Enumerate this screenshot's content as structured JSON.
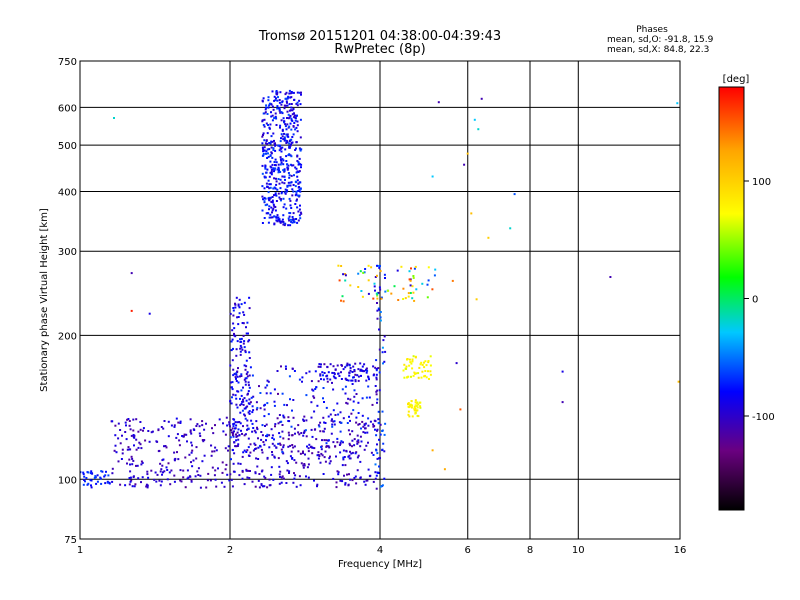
{
  "chart_data": {
    "type": "scatter",
    "title": "Tromsø 20151201 04:38:00-04:39:43",
    "subtitle": "RwPretec (8p)",
    "xlabel": "Frequency [MHz]",
    "ylabel": "Stationary phase Virtual Height [km]",
    "xscale": "log",
    "yscale": "log",
    "xlim": [
      1,
      16
    ],
    "ylim": [
      75,
      750
    ],
    "grid": true,
    "x_ticks": [
      1,
      2,
      4,
      6,
      8,
      10,
      16
    ],
    "y_ticks": [
      75,
      100,
      200,
      300,
      400,
      500,
      600,
      750
    ],
    "stats": {
      "heading": "Phases",
      "line_o": "mean, sd,O: -91.8, 15.9",
      "line_x": "mean, sd,X:  84.8, 22.3"
    },
    "colorbar": {
      "label": "[deg]",
      "range": [
        -180,
        180
      ],
      "ticks": [
        100,
        0,
        -100
      ],
      "colors": [
        "#000000",
        "#6a0080",
        "#0000ff",
        "#00ffff",
        "#00ff00",
        "#ffff00",
        "#ffa500",
        "#ff0000"
      ]
    },
    "clusters": [
      {
        "name": "F-layer echoes",
        "x": [
          2.32,
          2.78
        ],
        "y": [
          340,
          650
        ],
        "phase": [
          -105,
          -60
        ],
        "count": 520
      },
      {
        "name": "low-band trace",
        "x": [
          1.0,
          1.15
        ],
        "y": [
          96,
          104
        ],
        "phase": [
          -90,
          -60
        ],
        "count": 40
      },
      {
        "name": "main trace",
        "x": [
          1.15,
          3.9
        ],
        "y": [
          96,
          135
        ],
        "phase": [
          -120,
          -85
        ],
        "count": 520
      },
      {
        "name": "rising trace",
        "x": [
          2.0,
          2.2
        ],
        "y": [
          110,
          240
        ],
        "phase": [
          -110,
          -70
        ],
        "count": 160
      },
      {
        "name": "mid scatter",
        "x": [
          2.0,
          4.0
        ],
        "y": [
          110,
          175
        ],
        "phase": [
          -120,
          -60
        ],
        "count": 280
      },
      {
        "name": "upper band",
        "x": [
          3.0,
          3.95
        ],
        "y": [
          160,
          175
        ],
        "phase": [
          -110,
          -80
        ],
        "count": 70
      },
      {
        "name": "4 MHz column",
        "x": [
          3.9,
          4.1
        ],
        "y": [
          95,
          280
        ],
        "phase": [
          -110,
          -40
        ],
        "count": 70
      },
      {
        "name": "X-mode patch 1",
        "x": [
          4.45,
          5.1
        ],
        "y": [
          162,
          182
        ],
        "phase": [
          60,
          85
        ],
        "count": 50
      },
      {
        "name": "X-mode patch 2",
        "x": [
          4.55,
          4.85
        ],
        "y": [
          135,
          148
        ],
        "phase": [
          60,
          85
        ],
        "count": 40
      },
      {
        "name": "upper cloud",
        "x": [
          3.3,
          5.2
        ],
        "y": [
          235,
          280
        ],
        "phase": [
          -110,
          170
        ],
        "count": 70
      }
    ],
    "points": [
      {
        "x": 1.17,
        "y": 570,
        "phase": -20
      },
      {
        "x": 1.27,
        "y": 270,
        "phase": -110
      },
      {
        "x": 1.27,
        "y": 225,
        "phase": 170
      },
      {
        "x": 1.38,
        "y": 222,
        "phase": -90
      },
      {
        "x": 5.25,
        "y": 615,
        "phase": -110
      },
      {
        "x": 6.4,
        "y": 625,
        "phase": -110
      },
      {
        "x": 6.2,
        "y": 565,
        "phase": -30
      },
      {
        "x": 6.3,
        "y": 540,
        "phase": -20
      },
      {
        "x": 6.0,
        "y": 480,
        "phase": 110
      },
      {
        "x": 5.9,
        "y": 455,
        "phase": -110
      },
      {
        "x": 5.1,
        "y": 430,
        "phase": -30
      },
      {
        "x": 7.45,
        "y": 395,
        "phase": -60
      },
      {
        "x": 6.1,
        "y": 360,
        "phase": 110
      },
      {
        "x": 6.6,
        "y": 320,
        "phase": 100
      },
      {
        "x": 7.3,
        "y": 335,
        "phase": -20
      },
      {
        "x": 11.6,
        "y": 265,
        "phase": -110
      },
      {
        "x": 15.8,
        "y": 612,
        "phase": -30
      },
      {
        "x": 15.9,
        "y": 160,
        "phase": 110
      },
      {
        "x": 9.3,
        "y": 168,
        "phase": -90
      },
      {
        "x": 9.3,
        "y": 145,
        "phase": -110
      },
      {
        "x": 5.7,
        "y": 175,
        "phase": -100
      },
      {
        "x": 5.8,
        "y": 140,
        "phase": 150
      },
      {
        "x": 6.25,
        "y": 238,
        "phase": 100
      },
      {
        "x": 5.1,
        "y": 115,
        "phase": 120
      },
      {
        "x": 5.4,
        "y": 105,
        "phase": 120
      },
      {
        "x": 5.6,
        "y": 260,
        "phase": 140
      }
    ]
  }
}
